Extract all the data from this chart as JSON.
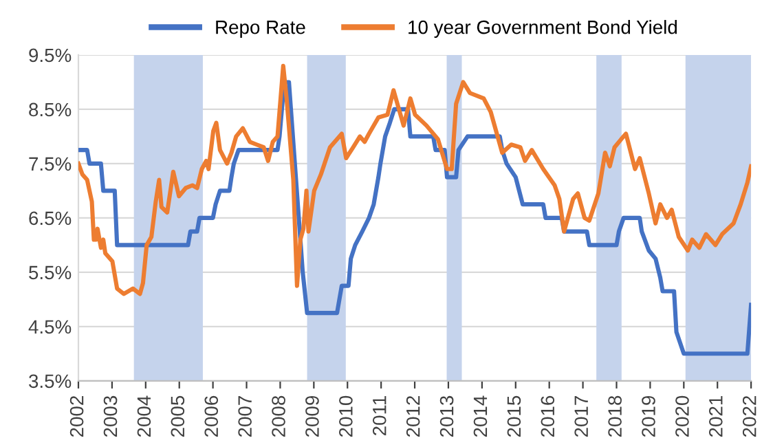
{
  "chart_data": {
    "type": "line",
    "xlim": [
      2002,
      2022
    ],
    "xticks": [
      2002,
      2003,
      2004,
      2005,
      2006,
      2007,
      2008,
      2009,
      2010,
      2011,
      2012,
      2013,
      2014,
      2015,
      2016,
      2017,
      2018,
      2019,
      2020,
      2021,
      2022
    ],
    "ylim": [
      3.5,
      9.5
    ],
    "yticks": [
      {
        "value": 3.5,
        "label": "3.5%"
      },
      {
        "value": 4.5,
        "label": "4.5%"
      },
      {
        "value": 5.5,
        "label": "5.5%"
      },
      {
        "value": 6.5,
        "label": "6.5%"
      },
      {
        "value": 7.5,
        "label": "7.5%"
      },
      {
        "value": 8.5,
        "label": "8.5%"
      },
      {
        "value": 9.5,
        "label": "9.5%"
      }
    ],
    "grid": "y",
    "legend": "top",
    "line_style": "solid",
    "marker": "none",
    "bands": [
      {
        "axis": "x",
        "from": 2003.65,
        "to": 2005.7,
        "color": "#c5d3ec"
      },
      {
        "axis": "x",
        "from": 2008.8,
        "to": 2009.95,
        "color": "#c5d3ec"
      },
      {
        "axis": "x",
        "from": 2012.95,
        "to": 2013.4,
        "color": "#c5d3ec"
      },
      {
        "axis": "x",
        "from": 2017.4,
        "to": 2018.15,
        "color": "#c5d3ec"
      },
      {
        "axis": "x",
        "from": 2020.05,
        "to": 2022.0,
        "color": "#c5d3ec"
      }
    ],
    "series": [
      {
        "name": "Repo Rate",
        "color": "#4472c4",
        "x": [
          2002.0,
          2002.26,
          2002.33,
          2002.67,
          2002.74,
          2003.08,
          2003.15,
          2005.26,
          2005.33,
          2005.53,
          2005.6,
          2006.0,
          2006.08,
          2006.21,
          2006.49,
          2006.55,
          2006.62,
          2006.76,
          2007.92,
          2007.98,
          2008.12,
          2008.26,
          2008.67,
          2008.8,
          2009.69,
          2009.83,
          2010.03,
          2010.1,
          2010.23,
          2010.44,
          2010.64,
          2010.78,
          2010.92,
          2010.98,
          2011.12,
          2011.26,
          2011.39,
          2011.8,
          2011.87,
          2012.55,
          2012.62,
          2012.89,
          2012.96,
          2013.23,
          2013.3,
          2013.57,
          2014.53,
          2014.6,
          2014.73,
          2015.0,
          2015.21,
          2015.82,
          2015.89,
          2016.37,
          2016.44,
          2017.12,
          2017.19,
          2018.0,
          2018.07,
          2018.21,
          2018.69,
          2018.75,
          2018.96,
          2019.16,
          2019.3,
          2019.37,
          2019.71,
          2019.78,
          2020.0,
          2021.89,
          2022.0
        ],
        "values": [
          7.75,
          7.75,
          7.5,
          7.5,
          7.0,
          7.0,
          6.0,
          6.0,
          6.25,
          6.25,
          6.5,
          6.5,
          6.75,
          7.0,
          7.0,
          7.25,
          7.5,
          7.75,
          7.75,
          8.0,
          9.0,
          9.0,
          5.5,
          4.75,
          4.75,
          5.25,
          5.25,
          5.75,
          6.0,
          6.25,
          6.5,
          6.75,
          7.25,
          7.5,
          8.0,
          8.25,
          8.5,
          8.5,
          8.0,
          8.0,
          7.75,
          7.75,
          7.25,
          7.25,
          7.75,
          8.0,
          8.0,
          7.75,
          7.5,
          7.25,
          6.75,
          6.75,
          6.5,
          6.5,
          6.25,
          6.25,
          6.0,
          6.0,
          6.25,
          6.5,
          6.5,
          6.25,
          5.9,
          5.75,
          5.4,
          5.15,
          5.15,
          4.4,
          4.0,
          4.0,
          4.9
        ]
      },
      {
        "name": "10 year Government Bond Yield",
        "color": "#ed7d31",
        "x": [
          2002.0,
          2002.12,
          2002.26,
          2002.4,
          2002.46,
          2002.53,
          2002.57,
          2002.67,
          2002.74,
          2002.8,
          2003.01,
          2003.15,
          2003.35,
          2003.62,
          2003.83,
          2003.92,
          2004.03,
          2004.17,
          2004.3,
          2004.4,
          2004.47,
          2004.64,
          2004.82,
          2004.99,
          2005.19,
          2005.39,
          2005.53,
          2005.67,
          2005.8,
          2005.87,
          2006.01,
          2006.1,
          2006.21,
          2006.42,
          2006.55,
          2006.69,
          2006.89,
          2007.1,
          2007.3,
          2007.51,
          2007.64,
          2007.78,
          2007.92,
          2008.09,
          2008.19,
          2008.39,
          2008.5,
          2008.6,
          2008.69,
          2008.78,
          2008.84,
          2009.01,
          2009.21,
          2009.48,
          2009.83,
          2009.96,
          2010.17,
          2010.37,
          2010.51,
          2010.64,
          2010.92,
          2011.19,
          2011.37,
          2011.53,
          2011.67,
          2011.87,
          2012.01,
          2012.35,
          2012.69,
          2012.96,
          2013.1,
          2013.23,
          2013.44,
          2013.64,
          2014.05,
          2014.26,
          2014.6,
          2014.87,
          2015.14,
          2015.28,
          2015.48,
          2015.82,
          2016.16,
          2016.3,
          2016.44,
          2016.71,
          2016.85,
          2017.05,
          2017.19,
          2017.46,
          2017.66,
          2017.8,
          2017.94,
          2018.14,
          2018.28,
          2018.55,
          2018.69,
          2018.96,
          2019.16,
          2019.3,
          2019.5,
          2019.64,
          2019.85,
          2020.12,
          2020.25,
          2020.46,
          2020.66,
          2020.94,
          2021.14,
          2021.48,
          2021.69,
          2021.89,
          2022.0
        ],
        "values": [
          7.5,
          7.3,
          7.2,
          6.8,
          6.1,
          6.1,
          6.3,
          5.95,
          6.1,
          5.85,
          5.7,
          5.2,
          5.1,
          5.2,
          5.1,
          5.3,
          6.0,
          6.15,
          6.8,
          7.2,
          6.7,
          6.6,
          7.35,
          6.9,
          7.05,
          7.1,
          7.05,
          7.4,
          7.55,
          7.4,
          8.1,
          8.25,
          7.75,
          7.5,
          7.7,
          8.0,
          8.15,
          7.9,
          7.85,
          7.8,
          7.55,
          7.9,
          8.0,
          9.3,
          8.7,
          7.2,
          5.25,
          6.1,
          6.3,
          7.0,
          6.25,
          7.0,
          7.3,
          7.8,
          8.05,
          7.6,
          7.8,
          8.0,
          7.9,
          8.05,
          8.35,
          8.4,
          8.85,
          8.5,
          8.2,
          8.7,
          8.4,
          8.2,
          7.95,
          7.4,
          7.4,
          8.6,
          9.0,
          8.8,
          8.7,
          8.45,
          7.7,
          7.85,
          7.8,
          7.55,
          7.75,
          7.4,
          7.1,
          6.85,
          6.25,
          6.85,
          6.95,
          6.5,
          6.45,
          6.95,
          7.7,
          7.45,
          7.8,
          7.95,
          8.05,
          7.4,
          7.6,
          6.95,
          6.4,
          6.75,
          6.5,
          6.65,
          6.15,
          5.9,
          6.1,
          5.95,
          6.2,
          6.0,
          6.2,
          6.4,
          6.75,
          7.15,
          7.45
        ]
      }
    ]
  }
}
